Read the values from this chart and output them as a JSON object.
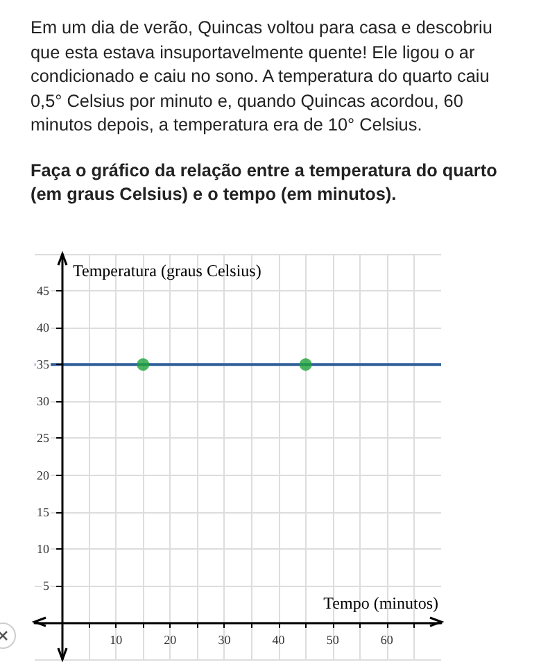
{
  "chart_data": {
    "type": "line",
    "annotations": [
      "Em um dia de verão, Quincas voltou para casa e descobriu que esta estava insuportavelmente quente! Ele ligou o ar condicionado e caiu no sono. A temperatura do quarto caiu 0,5° Celsius por minuto e, quando Quincas acordou, 60 minutos depois, a temperatura era de 10° Celsius.",
      "Faça o gráfico da relação entre a temperatura do quarto (em graus Celsius) e o tempo (em minutos)."
    ],
    "xlabel": "Tempo (minutos)",
    "ylabel": "Temperatura (graus Celsius)",
    "xlim": [
      -5,
      70
    ],
    "ylim": [
      -5,
      50
    ],
    "xticks": [
      {
        "value": 5,
        "label": null
      },
      10,
      {
        "value": 15,
        "label": null
      },
      20,
      {
        "value": 25,
        "label": null
      },
      30,
      {
        "value": 35,
        "label": null
      },
      40,
      {
        "value": 45,
        "label": null
      },
      50,
      {
        "value": 55,
        "label": null
      },
      60,
      {
        "value": 65,
        "label": null
      }
    ],
    "yticks": [
      5,
      10,
      15,
      20,
      25,
      30,
      35,
      40,
      45
    ],
    "grid": true,
    "series": [
      {
        "color": "#2e5f9a",
        "x": [
          -5,
          70
        ],
        "values": [
          35,
          35
        ],
        "marker": "none"
      },
      {
        "type": "scatter",
        "color": "#1fa33a",
        "x": [
          15,
          45
        ],
        "values": [
          35,
          35
        ],
        "marker": "circle"
      }
    ]
  }
}
